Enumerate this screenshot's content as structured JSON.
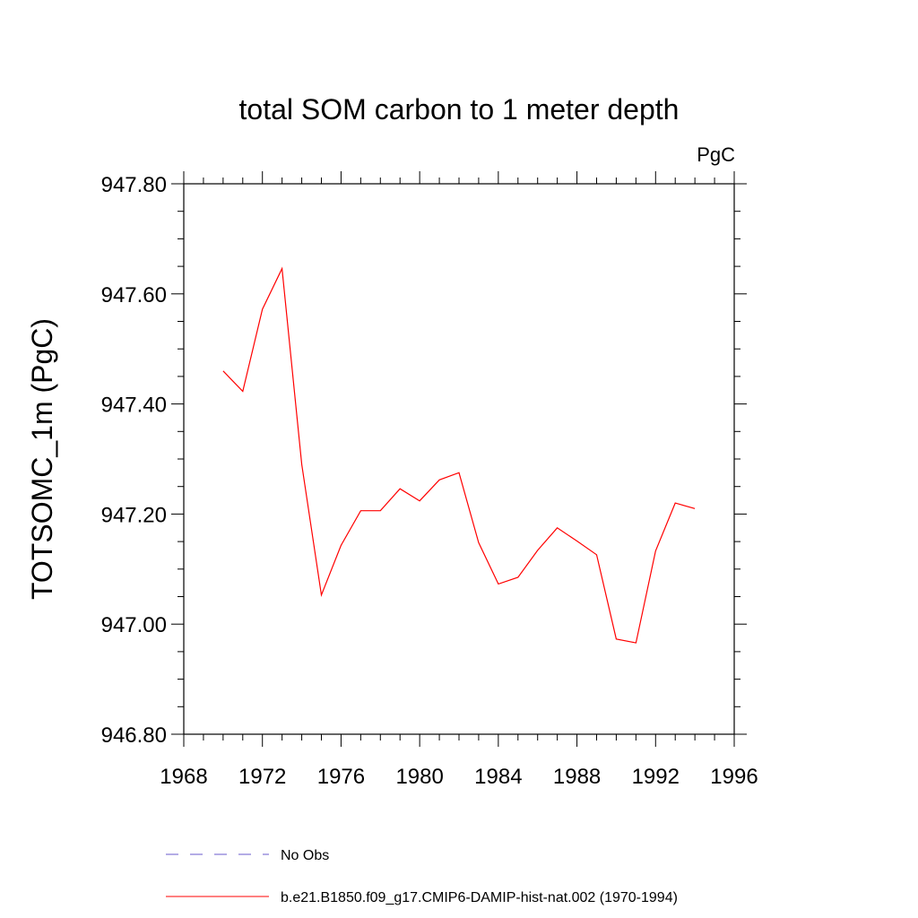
{
  "chart_data": {
    "type": "line",
    "title": "total SOM carbon to 1 meter depth",
    "units": "PgC",
    "ylabel": "TOTSOMC_1m  (PgC)",
    "xlabel": "",
    "xlim": [
      1968,
      1996
    ],
    "ylim": [
      946.8,
      947.8
    ],
    "xticks": [
      1968,
      1972,
      1976,
      1980,
      1984,
      1988,
      1992,
      1996
    ],
    "yticks": [
      946.8,
      947.0,
      947.2,
      947.4,
      947.6,
      947.8
    ],
    "xtick_labels": [
      "1968",
      "1972",
      "1976",
      "1980",
      "1984",
      "1988",
      "1992",
      "1996"
    ],
    "ytick_labels": [
      "946.80",
      "947.00",
      "947.20",
      "947.40",
      "947.60",
      "947.80"
    ],
    "grid": false,
    "legend_position": "bottom",
    "series": [
      {
        "name": "No Obs",
        "color": "#6a5acd",
        "dash": "dashed",
        "x": [],
        "y": []
      },
      {
        "name": "b.e21.B1850.f09_g17.CMIP6-DAMIP-hist-nat.002 (1970-1994)",
        "color": "#ff0000",
        "dash": "solid",
        "x": [
          1970,
          1971,
          1972,
          1973,
          1974,
          1975,
          1976,
          1977,
          1978,
          1979,
          1980,
          1981,
          1982,
          1983,
          1984,
          1985,
          1986,
          1987,
          1988,
          1989,
          1990,
          1991,
          1992,
          1993,
          1994
        ],
        "y": [
          947.46,
          947.423,
          947.572,
          947.646,
          947.29,
          947.053,
          947.143,
          947.206,
          947.206,
          947.246,
          947.224,
          947.262,
          947.275,
          947.148,
          947.073,
          947.085,
          947.134,
          947.175,
          947.151,
          947.126,
          946.973,
          946.966,
          947.133,
          947.22,
          947.21
        ]
      }
    ]
  }
}
